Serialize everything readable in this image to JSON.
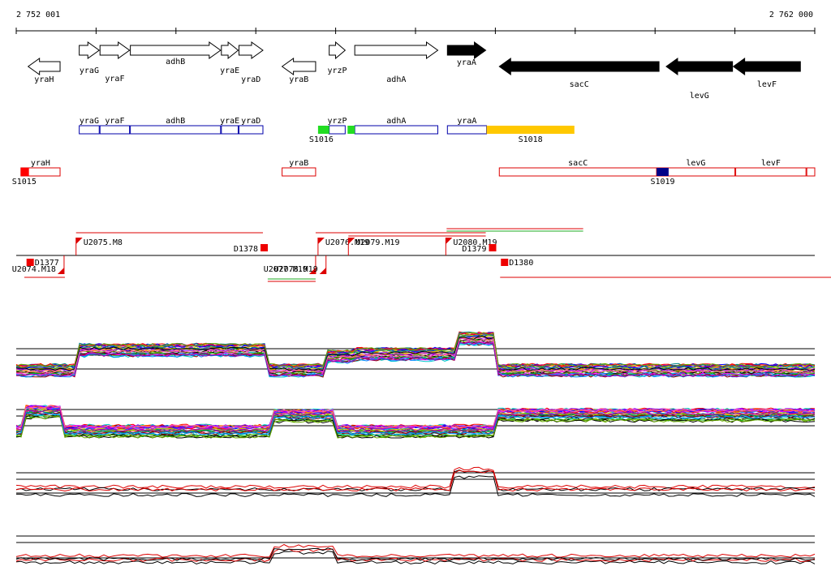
{
  "coordinates": {
    "start_label": "2 752 001",
    "end_label": "2 762 000",
    "start": 2752001,
    "end": 2762000
  },
  "gene_track": [
    {
      "name": "yraH",
      "from": 2752150,
      "to": 2752550,
      "strand": "-",
      "highlight": false
    },
    {
      "name": "yraG",
      "from": 2752790,
      "to": 2753040,
      "strand": "+",
      "highlight": false
    },
    {
      "name": "yraF",
      "from": 2753050,
      "to": 2753420,
      "strand": "+",
      "highlight": false
    },
    {
      "name": "adhB",
      "from": 2753430,
      "to": 2754560,
      "strand": "+",
      "highlight": false
    },
    {
      "name": "yraE",
      "from": 2754570,
      "to": 2754780,
      "strand": "+",
      "highlight": false
    },
    {
      "name": "yraD",
      "from": 2754790,
      "to": 2755090,
      "strand": "+",
      "highlight": false
    },
    {
      "name": "yraB",
      "from": 2755330,
      "to": 2755750,
      "strand": "-",
      "highlight": false
    },
    {
      "name": "yrzP",
      "from": 2755920,
      "to": 2756120,
      "strand": "+",
      "highlight": false
    },
    {
      "name": "adhA",
      "from": 2756240,
      "to": 2757280,
      "strand": "+",
      "highlight": false
    },
    {
      "name": "yraA",
      "from": 2757400,
      "to": 2757880,
      "strand": "+",
      "highlight": true
    },
    {
      "name": "sacC",
      "from": 2758050,
      "to": 2760050,
      "strand": "-",
      "highlight": true
    },
    {
      "name": "levG",
      "from": 2760140,
      "to": 2760970,
      "strand": "-",
      "highlight": true
    },
    {
      "name": "levF",
      "from": 2760980,
      "to": 2761820,
      "strand": "-",
      "highlight": true
    }
  ],
  "annotation_plus": {
    "boxes": [
      {
        "name": "yraG",
        "from": 2752790,
        "to": 2753040
      },
      {
        "name": "yraF",
        "from": 2753050,
        "to": 2753420
      },
      {
        "name": "adhB",
        "from": 2753430,
        "to": 2754560
      },
      {
        "name": "yraE",
        "from": 2754570,
        "to": 2754780
      },
      {
        "name": "yraD",
        "from": 2754790,
        "to": 2755090
      },
      {
        "name": "yrzP",
        "from": 2755920,
        "to": 2756120
      },
      {
        "name": "adhA",
        "from": 2756240,
        "to": 2757280
      },
      {
        "name": "yraA",
        "from": 2757400,
        "to": 2757890
      }
    ],
    "features": [
      {
        "name": "S1016",
        "from": 2755780,
        "to": 2755920,
        "color": "#22dd22",
        "label_side": "left"
      },
      {
        "name": "",
        "from": 2756150,
        "to": 2756240,
        "color": "#22dd22",
        "label_side": "none"
      },
      {
        "name": "S1018",
        "from": 2757890,
        "to": 2758990,
        "color": "#ffc800",
        "label_side": "center"
      }
    ]
  },
  "annotation_minus": {
    "boxes": [
      {
        "name": "yraH",
        "from": 2752060,
        "to": 2752550
      },
      {
        "name": "yraB",
        "from": 2755330,
        "to": 2755750
      },
      {
        "name": "sacC",
        "from": 2758050,
        "to": 2760020
      },
      {
        "name": "levG",
        "from": 2760020,
        "to": 2761000
      },
      {
        "name": "levF",
        "from": 2761010,
        "to": 2761890
      },
      {
        "name": "",
        "from": 2761900,
        "to": 2762000
      }
    ],
    "features": [
      {
        "name": "S1015",
        "from": 2752060,
        "to": 2752160,
        "color": "#ff0000",
        "label_side": "left"
      },
      {
        "name": "S1019",
        "from": 2760020,
        "to": 2760170,
        "color": "#000088",
        "label_side": "center"
      }
    ]
  },
  "transcription_units": [
    {
      "name": "U2075.M8",
      "pos": 2752750,
      "strand": "+"
    },
    {
      "name": "U2076.M19",
      "pos": 2755780,
      "strand": "+"
    },
    {
      "name": "U2079.M19",
      "pos": 2756160,
      "strand": "+"
    },
    {
      "name": "U2080.M19",
      "pos": 2757380,
      "strand": "+"
    },
    {
      "name": "U2074.M18",
      "pos": 2752600,
      "strand": "-"
    },
    {
      "name": "U2077.M19",
      "pos": 2755750,
      "strand": "-"
    },
    {
      "name": "U2078.M19",
      "pos": 2755880,
      "strand": "-"
    }
  ],
  "terminators": [
    {
      "name": "D1377",
      "pos": 2752130,
      "strand": "-"
    },
    {
      "name": "D1378",
      "pos": 2755060,
      "strand": "+"
    },
    {
      "name": "D1379",
      "pos": 2757920,
      "strand": "+"
    },
    {
      "name": "D1380",
      "pos": 2758070,
      "strand": "-"
    }
  ],
  "expression_panels": [
    {
      "name": "profile-plus-many"
    },
    {
      "name": "profile-minus-many"
    },
    {
      "name": "profile-plus-few"
    },
    {
      "name": "profile-minus-few"
    }
  ]
}
